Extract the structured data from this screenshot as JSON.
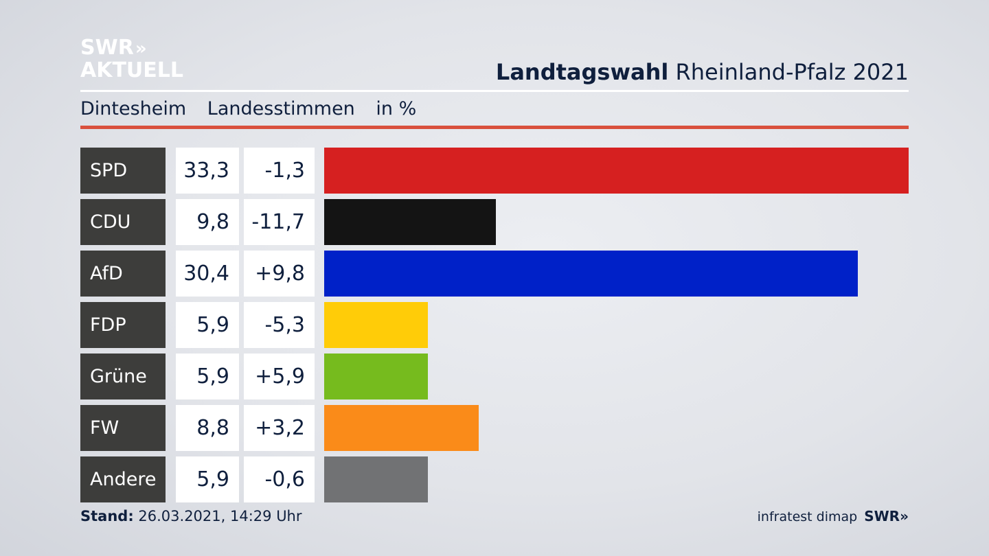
{
  "logo": {
    "line1": "SWR",
    "chevrons": "»",
    "line2": "AKTUELL"
  },
  "header": {
    "title_bold": "Landtagswahl",
    "title_rest": "Rheinland-Pfalz 2021"
  },
  "subheader": {
    "place": "Dintesheim",
    "kind": "Landesstimmen",
    "unit": "in %"
  },
  "footer": {
    "stand_label": "Stand:",
    "stand_value": "26.03.2021, 14:29 Uhr",
    "source": "infratest dimap",
    "brand": "SWR",
    "brand_chevrons": "»"
  },
  "chart_data": {
    "type": "bar",
    "orientation": "horizontal",
    "categories": [
      "SPD",
      "CDU",
      "AfD",
      "FDP",
      "Grüne",
      "FW",
      "Andere"
    ],
    "values": [
      33.3,
      9.8,
      30.4,
      5.9,
      5.9,
      8.8,
      5.9
    ],
    "values_text": [
      "33,3",
      "9,8",
      "30,4",
      "5,9",
      "5,9",
      "8,8",
      "5,9"
    ],
    "changes": [
      -1.3,
      -11.7,
      9.8,
      -5.3,
      5.9,
      3.2,
      -0.6
    ],
    "changes_text": [
      "-1,3",
      "-11,7",
      "+9,8",
      "-5,3",
      "+5,9",
      "+3,2",
      "-0,6"
    ],
    "colors": [
      "#d62020",
      "#141414",
      "#0021c8",
      "#ffcc08",
      "#76bb1e",
      "#fa8b19",
      "#717274"
    ],
    "xlim": [
      0,
      33.3
    ]
  }
}
